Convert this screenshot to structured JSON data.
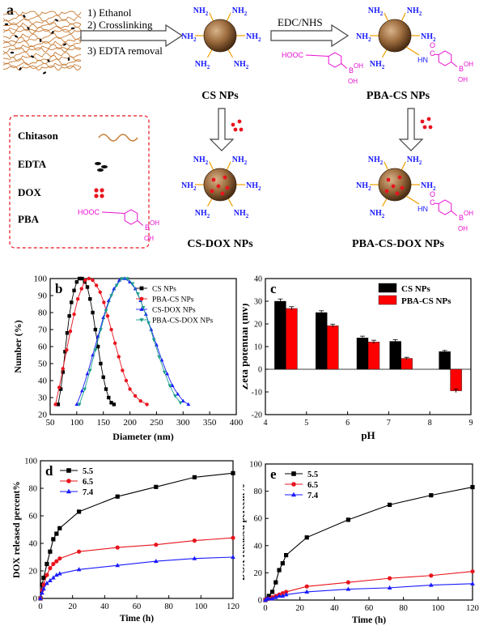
{
  "scheme": {
    "panel_label": "a",
    "steps": [
      "1) Ethanol",
      "2) Crosslinking",
      "3) EDTA removal"
    ],
    "reaction_label": "EDC/NHS",
    "amine": "NH",
    "amine_sub": "2",
    "hooc": "HOOC",
    "boronic_b": "B",
    "boronic_oh": "OH",
    "amide_o": "O",
    "amide_c": "C",
    "amide_hn": "HN",
    "np_names": [
      "CS NPs",
      "PBA-CS NPs",
      "CS-DOX NPs",
      "PBA-CS-DOX NPs"
    ],
    "legend_items": [
      "Chitason",
      "EDTA",
      "DOX",
      "PBA"
    ],
    "colors": {
      "amine": "#1a1aff",
      "pba": "#e60fcf",
      "dox": "#e8141e",
      "chitosan": "#c87f3a",
      "particle": "#9a6a3c"
    }
  },
  "chart_data": [
    {
      "panel": "b",
      "type": "line",
      "xlabel": "Diameter (nm)",
      "ylabel": "Number (%)",
      "xlim": [
        50,
        400
      ],
      "ylim": [
        20,
        100
      ],
      "xticks": [
        50,
        100,
        150,
        200,
        250,
        300,
        350,
        400
      ],
      "yticks": [
        20,
        30,
        40,
        50,
        60,
        70,
        80,
        90,
        100
      ],
      "legend": "top-right",
      "series": [
        {
          "name": "CS NPs",
          "color": "#000000",
          "marker": "square",
          "x": [
            65,
            70,
            74,
            78,
            82,
            86,
            90,
            95,
            100,
            105,
            110,
            115,
            120,
            125,
            130,
            135,
            140,
            145,
            150,
            155,
            160,
            165,
            170
          ],
          "y": [
            26,
            35,
            45,
            57,
            68,
            78,
            86,
            93,
            98,
            100,
            100,
            98,
            95,
            88,
            80,
            70,
            60,
            50,
            42,
            35,
            30,
            27,
            26
          ]
        },
        {
          "name": "PBA-CS NPs",
          "color": "#e8141e",
          "marker": "circle",
          "x": [
            60,
            67,
            74,
            81,
            88,
            95,
            102,
            109,
            116,
            123,
            130,
            137,
            144,
            151,
            158,
            165,
            172,
            179,
            186,
            193,
            200,
            210,
            220,
            232
          ],
          "y": [
            26,
            36,
            47,
            58,
            69,
            79,
            88,
            94,
            99,
            100,
            99,
            96,
            92,
            86,
            78,
            70,
            62,
            54,
            46,
            40,
            35,
            31,
            28,
            26
          ]
        },
        {
          "name": "CS-DOX NPs",
          "color": "#1a1aff",
          "marker": "triangle-up",
          "x": [
            100,
            110,
            120,
            130,
            140,
            150,
            160,
            170,
            180,
            190,
            200,
            210,
            220,
            230,
            240,
            250,
            260,
            270,
            280,
            290,
            300,
            310
          ],
          "y": [
            26,
            34,
            44,
            55,
            66,
            77,
            87,
            94,
            99,
            100,
            98,
            94,
            87,
            79,
            70,
            61,
            52,
            44,
            37,
            32,
            28,
            26
          ]
        },
        {
          "name": "PBA-CS-DOX NPs",
          "color": "#1a9e8a",
          "marker": "triangle-down",
          "x": [
            105,
            115,
            125,
            135,
            145,
            155,
            165,
            175,
            185,
            195,
            205,
            215,
            225,
            235,
            245,
            255,
            265,
            275,
            285,
            295
          ],
          "y": [
            26,
            35,
            46,
            58,
            70,
            81,
            90,
            96,
            100,
            100,
            97,
            91,
            83,
            74,
            64,
            54,
            45,
            37,
            31,
            27
          ]
        }
      ]
    },
    {
      "panel": "c",
      "type": "bar",
      "xlabel": "pH",
      "ylabel": "Zeta potential (mv)",
      "xlim": [
        4,
        9
      ],
      "ylim": [
        -20,
        40
      ],
      "xticks": [
        4,
        5,
        6,
        7,
        8,
        9
      ],
      "yticks": [
        -20,
        -10,
        0,
        10,
        20,
        30,
        40
      ],
      "legend": "top-right",
      "x": [
        4.5,
        5.5,
        6.5,
        7.3,
        8.5
      ],
      "series": [
        {
          "name": "CS NPs",
          "color": "#000000",
          "values": [
            30.0,
            25.0,
            13.8,
            12.3,
            7.8
          ],
          "err": [
            1.0,
            0.8,
            0.8,
            0.8,
            0.5
          ]
        },
        {
          "name": "PBA-CS NPs",
          "color": "#ff0000",
          "values": [
            26.8,
            19.2,
            12.0,
            4.8,
            -9.5
          ],
          "err": [
            0.8,
            0.7,
            0.8,
            0.5,
            0.8
          ]
        }
      ]
    },
    {
      "panel": "d",
      "type": "line",
      "xlabel": "Time (h)",
      "ylabel": "DOX released percent%",
      "xlim": [
        0,
        120
      ],
      "ylim": [
        0,
        100
      ],
      "xticks": [
        0,
        20,
        40,
        60,
        80,
        100,
        120
      ],
      "yticks": [
        0,
        20,
        40,
        60,
        80,
        100
      ],
      "legend": "top-left",
      "x": [
        0,
        1,
        2,
        4,
        6,
        8,
        10,
        12,
        24,
        48,
        72,
        96,
        120
      ],
      "series": [
        {
          "name": "5.5",
          "color": "#000000",
          "marker": "square",
          "values": [
            0,
            10,
            15,
            25,
            34,
            43,
            47,
            51,
            63,
            74,
            81,
            88,
            91
          ]
        },
        {
          "name": "6.5",
          "color": "#e8141e",
          "marker": "circle",
          "values": [
            0,
            6,
            10,
            17,
            22,
            25,
            27,
            29,
            34,
            37,
            39,
            42,
            44
          ]
        },
        {
          "name": "7.4",
          "color": "#1a1aff",
          "marker": "triangle-up",
          "values": [
            0,
            4,
            7,
            11,
            13,
            15,
            17,
            18,
            21,
            24,
            27,
            29,
            30
          ]
        }
      ]
    },
    {
      "panel": "e",
      "type": "line",
      "xlabel": "Time (h)",
      "ylabel": "DOX released percent%",
      "xlim": [
        0,
        120
      ],
      "ylim": [
        0,
        100
      ],
      "xticks": [
        0,
        20,
        40,
        60,
        80,
        100,
        120
      ],
      "yticks": [
        0,
        20,
        40,
        60,
        80,
        100
      ],
      "legend": "top-left",
      "x": [
        0,
        1,
        2,
        4,
        6,
        8,
        10,
        12,
        24,
        48,
        72,
        96,
        120
      ],
      "series": [
        {
          "name": "5.5",
          "color": "#000000",
          "marker": "square",
          "values": [
            0,
            1,
            3,
            6,
            13,
            22,
            27,
            33,
            46,
            59,
            70,
            77,
            83
          ]
        },
        {
          "name": "6.5",
          "color": "#e8141e",
          "marker": "circle",
          "values": [
            0,
            1,
            1,
            2,
            3,
            4,
            5,
            6,
            10,
            13,
            16,
            18,
            21
          ]
        },
        {
          "name": "7.4",
          "color": "#1a1aff",
          "marker": "triangle-up",
          "values": [
            0,
            1,
            1,
            1,
            2,
            3,
            3,
            4,
            6,
            8,
            9,
            11,
            12
          ]
        }
      ]
    }
  ]
}
